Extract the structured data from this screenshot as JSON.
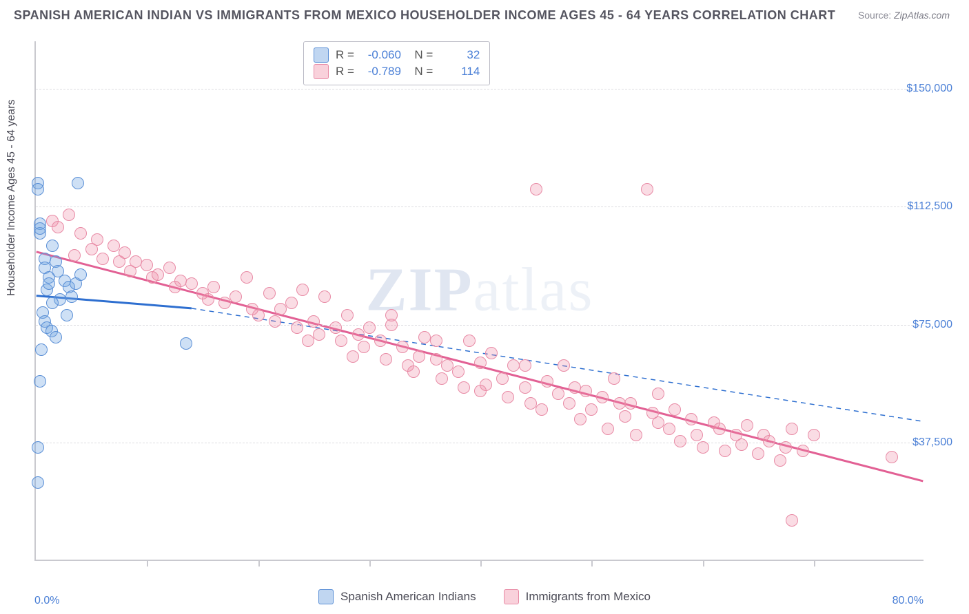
{
  "title": "SPANISH AMERICAN INDIAN VS IMMIGRANTS FROM MEXICO HOUSEHOLDER INCOME AGES 45 - 64 YEARS CORRELATION CHART",
  "source_label": "Source:",
  "source_value": "ZipAtlas.com",
  "y_axis_label": "Householder Income Ages 45 - 64 years",
  "watermark": "ZIPatlas",
  "chart": {
    "type": "scatter",
    "xlim": [
      0,
      80
    ],
    "ylim": [
      0,
      165000
    ],
    "x_start_label": "0.0%",
    "x_end_label": "80.0%",
    "y_ticks": [
      37500,
      75000,
      112500,
      150000
    ],
    "y_tick_labels": [
      "$37,500",
      "$75,000",
      "$112,500",
      "$150,000"
    ],
    "x_tick_positions": [
      10,
      20,
      30,
      40,
      50,
      60,
      70
    ],
    "background_color": "#ffffff",
    "grid_color": "#dcdce0",
    "axis_color": "#c9c9cf",
    "tick_label_color": "#4a7fd6",
    "marker_radius": 9,
    "series": [
      {
        "name": "Spanish American Indians",
        "color_fill": "rgba(115,165,225,0.35)",
        "color_stroke": "#5a8fd6",
        "R": "-0.060",
        "N": "32",
        "trend": {
          "x1": 0,
          "y1": 84000,
          "x2": 14,
          "y2": 80000,
          "dash_x2": 80,
          "dash_y2": 44000,
          "color": "#2e6fd0",
          "width": 3
        },
        "points": [
          [
            0.2,
            120000
          ],
          [
            0.2,
            118000
          ],
          [
            0.4,
            107000
          ],
          [
            0.4,
            104000
          ],
          [
            0.4,
            105500
          ],
          [
            3.8,
            120000
          ],
          [
            0.8,
            96000
          ],
          [
            0.8,
            93000
          ],
          [
            1.2,
            90000
          ],
          [
            1.0,
            86000
          ],
          [
            1.5,
            100000
          ],
          [
            1.8,
            95000
          ],
          [
            2.0,
            92000
          ],
          [
            2.2,
            83000
          ],
          [
            2.6,
            89000
          ],
          [
            3.0,
            87000
          ],
          [
            3.2,
            84000
          ],
          [
            0.6,
            79000
          ],
          [
            0.8,
            76000
          ],
          [
            1.0,
            74000
          ],
          [
            1.4,
            73000
          ],
          [
            1.8,
            71000
          ],
          [
            0.5,
            67000
          ],
          [
            1.2,
            88000
          ],
          [
            3.6,
            88000
          ],
          [
            4.0,
            91000
          ],
          [
            0.4,
            57000
          ],
          [
            0.2,
            36000
          ],
          [
            0.2,
            25000
          ],
          [
            13.5,
            69000
          ],
          [
            2.8,
            78000
          ],
          [
            1.5,
            82000
          ]
        ]
      },
      {
        "name": "Immigrants from Mexico",
        "color_fill": "rgba(240,140,165,0.30)",
        "color_stroke": "#e88aa5",
        "R": "-0.789",
        "N": "114",
        "trend": {
          "x1": 0,
          "y1": 98000,
          "x2": 80,
          "y2": 25000,
          "color": "#e26094",
          "width": 3
        },
        "points": [
          [
            1.5,
            108000
          ],
          [
            2.0,
            106000
          ],
          [
            3.0,
            110000
          ],
          [
            4.0,
            104000
          ],
          [
            3.5,
            97000
          ],
          [
            5.0,
            99000
          ],
          [
            5.5,
            102000
          ],
          [
            6.0,
            96000
          ],
          [
            7.0,
            100000
          ],
          [
            7.5,
            95000
          ],
          [
            8.0,
            98000
          ],
          [
            8.5,
            92000
          ],
          [
            9.0,
            95000
          ],
          [
            10.0,
            94000
          ],
          [
            10.5,
            90000
          ],
          [
            11.0,
            91000
          ],
          [
            12.0,
            93000
          ],
          [
            12.5,
            87000
          ],
          [
            13.0,
            89000
          ],
          [
            14.0,
            88000
          ],
          [
            15.0,
            85000
          ],
          [
            15.5,
            83000
          ],
          [
            16.0,
            87000
          ],
          [
            17.0,
            82000
          ],
          [
            18.0,
            84000
          ],
          [
            19.0,
            90000
          ],
          [
            19.5,
            80000
          ],
          [
            20.0,
            78000
          ],
          [
            21.0,
            85000
          ],
          [
            21.5,
            76000
          ],
          [
            22.0,
            80000
          ],
          [
            23.0,
            82000
          ],
          [
            23.5,
            74000
          ],
          [
            24.0,
            86000
          ],
          [
            25.0,
            76000
          ],
          [
            25.5,
            72000
          ],
          [
            26.0,
            84000
          ],
          [
            27.0,
            74000
          ],
          [
            27.5,
            70000
          ],
          [
            28.0,
            78000
          ],
          [
            29.0,
            72000
          ],
          [
            29.5,
            68000
          ],
          [
            30.0,
            74000
          ],
          [
            31.0,
            70000
          ],
          [
            31.5,
            64000
          ],
          [
            32.0,
            75000
          ],
          [
            33.0,
            68000
          ],
          [
            33.5,
            62000
          ],
          [
            34.0,
            60000
          ],
          [
            34.5,
            65000
          ],
          [
            35.0,
            71000
          ],
          [
            36.0,
            64000
          ],
          [
            36.5,
            58000
          ],
          [
            37.0,
            62000
          ],
          [
            38.0,
            60000
          ],
          [
            38.5,
            55000
          ],
          [
            39.0,
            70000
          ],
          [
            40.0,
            63000
          ],
          [
            40.5,
            56000
          ],
          [
            41.0,
            66000
          ],
          [
            42.0,
            58000
          ],
          [
            42.5,
            52000
          ],
          [
            43.0,
            62000
          ],
          [
            44.0,
            55000
          ],
          [
            44.5,
            50000
          ],
          [
            45.0,
            118000
          ],
          [
            45.5,
            48000
          ],
          [
            46.0,
            57000
          ],
          [
            47.0,
            53000
          ],
          [
            47.5,
            62000
          ],
          [
            48.0,
            50000
          ],
          [
            49.0,
            45000
          ],
          [
            49.5,
            54000
          ],
          [
            50.0,
            48000
          ],
          [
            51.0,
            52000
          ],
          [
            51.5,
            42000
          ],
          [
            52.0,
            58000
          ],
          [
            53.0,
            46000
          ],
          [
            53.5,
            50000
          ],
          [
            54.0,
            40000
          ],
          [
            55.0,
            118000
          ],
          [
            55.5,
            47000
          ],
          [
            56.0,
            44000
          ],
          [
            57.0,
            42000
          ],
          [
            57.5,
            48000
          ],
          [
            58.0,
            38000
          ],
          [
            59.0,
            45000
          ],
          [
            59.5,
            40000
          ],
          [
            60.0,
            36000
          ],
          [
            61.0,
            44000
          ],
          [
            61.5,
            42000
          ],
          [
            62.0,
            35000
          ],
          [
            63.0,
            40000
          ],
          [
            63.5,
            37000
          ],
          [
            64.0,
            43000
          ],
          [
            65.0,
            34000
          ],
          [
            65.5,
            40000
          ],
          [
            66.0,
            38000
          ],
          [
            67.0,
            32000
          ],
          [
            67.5,
            36000
          ],
          [
            68.0,
            42000
          ],
          [
            69.0,
            35000
          ],
          [
            77.0,
            33000
          ],
          [
            68.0,
            13000
          ],
          [
            70.0,
            40000
          ],
          [
            56.0,
            53000
          ],
          [
            52.5,
            50000
          ],
          [
            48.5,
            55000
          ],
          [
            44.0,
            62000
          ],
          [
            40.0,
            54000
          ],
          [
            36.0,
            70000
          ],
          [
            32.0,
            78000
          ],
          [
            28.5,
            65000
          ],
          [
            24.5,
            70000
          ]
        ]
      }
    ]
  },
  "legend_bottom": [
    {
      "label": "Spanish American Indians",
      "swatch": "blue"
    },
    {
      "label": "Immigrants from Mexico",
      "swatch": "pink"
    }
  ]
}
